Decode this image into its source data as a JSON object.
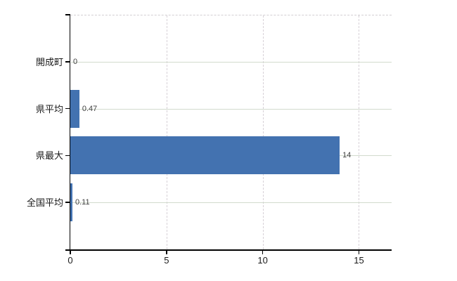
{
  "chart_data": {
    "type": "bar",
    "orientation": "horizontal",
    "title": "",
    "categories": [
      "開成町",
      "県平均",
      "県最大",
      "全国平均"
    ],
    "values": [
      0,
      0.47,
      14,
      0.11
    ],
    "value_labels": [
      "0",
      "0.47",
      "14",
      "0.11"
    ],
    "x_ticks": [
      0,
      5,
      10,
      15
    ],
    "x_tick_labels": [
      "0",
      "5",
      "10",
      "15"
    ],
    "xlim": [
      0,
      16.7
    ],
    "grid": true,
    "legend": "none",
    "colors": {
      "bar": "#4372b0",
      "grid_horizontal": "#d2dbcd",
      "grid_vertical": "#d7d1d7",
      "top_border": "#d3ced3",
      "axis": "#000000",
      "tick_text": "#1a1a1a",
      "value_text": "#404040",
      "background": "#ffffff"
    }
  }
}
